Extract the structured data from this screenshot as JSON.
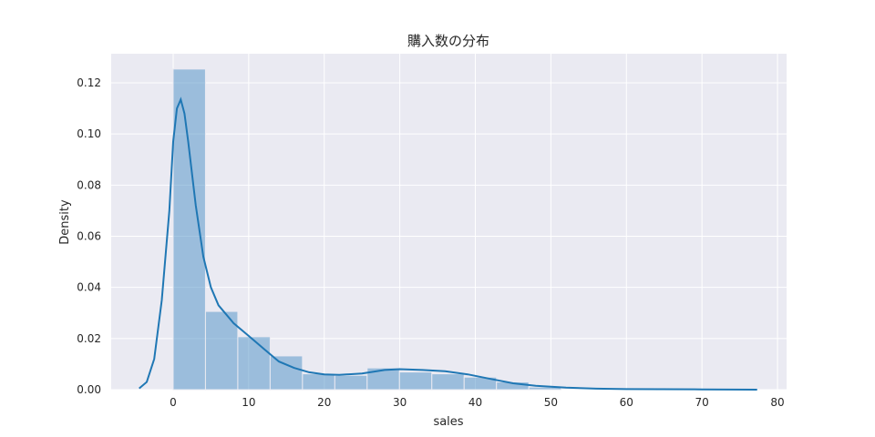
{
  "chart_data": {
    "type": "bar",
    "title": "購入数の分布",
    "xlabel": "sales",
    "ylabel": "Density",
    "xlim": [
      -8.2,
      81.2
    ],
    "ylim": [
      0,
      0.1314
    ],
    "grid": true,
    "xticks": [
      0,
      10,
      20,
      30,
      40,
      50,
      60,
      70,
      80
    ],
    "yticks": [
      "0.00",
      "0.02",
      "0.04",
      "0.06",
      "0.08",
      "0.10",
      "0.12"
    ],
    "bar_color": "#4c8fc5",
    "line_color": "#1f77b4",
    "background": "#eaeaf2",
    "histogram": {
      "bin_edges": [
        0,
        4.28,
        8.56,
        12.84,
        17.12,
        21.4,
        25.68,
        29.96,
        34.24,
        38.52,
        42.8,
        47.08,
        51.36
      ],
      "density": [
        0.1254,
        0.0306,
        0.0207,
        0.0132,
        0.0062,
        0.0056,
        0.0085,
        0.0069,
        0.0062,
        0.0049,
        0.003,
        0.001
      ]
    },
    "kde": {
      "x": [
        -4.5,
        -3.5,
        -2.5,
        -1.5,
        -0.5,
        0,
        0.5,
        1,
        1.5,
        2,
        3,
        4,
        5,
        6,
        8,
        10,
        12,
        14,
        16,
        18,
        20,
        22,
        25,
        28,
        30,
        33,
        36,
        39,
        42,
        45,
        48,
        52,
        56,
        60,
        70,
        77.3
      ],
      "y": [
        0.0005,
        0.003,
        0.012,
        0.035,
        0.07,
        0.097,
        0.11,
        0.1135,
        0.108,
        0.097,
        0.072,
        0.052,
        0.04,
        0.033,
        0.026,
        0.021,
        0.016,
        0.011,
        0.0085,
        0.0068,
        0.006,
        0.0058,
        0.0063,
        0.0077,
        0.008,
        0.0077,
        0.0072,
        0.006,
        0.0042,
        0.0025,
        0.0015,
        0.0008,
        0.0004,
        0.0002,
        0.0001,
        0.0
      ]
    }
  }
}
